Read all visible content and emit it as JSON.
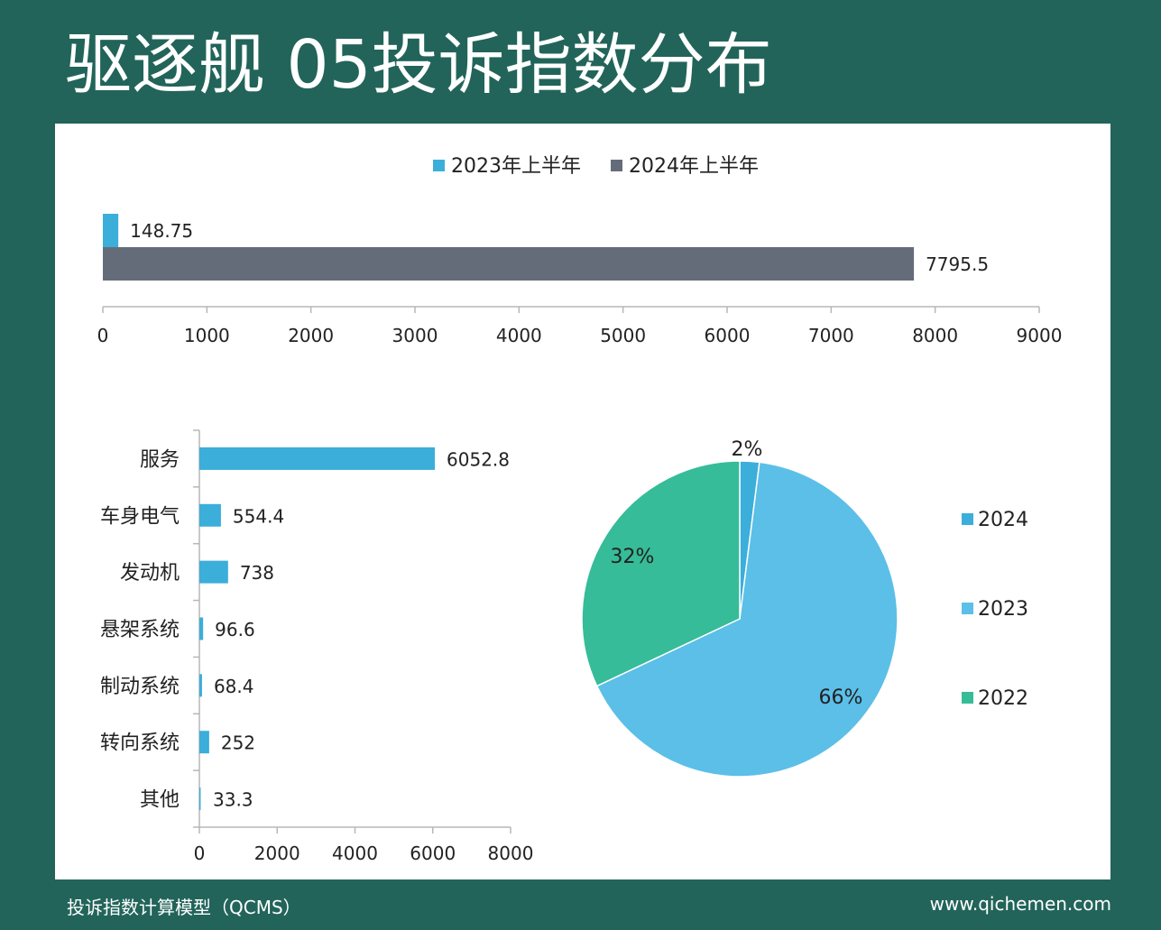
{
  "title": "驱逐舰 05投诉指数分布",
  "footer": {
    "left": "投诉指数计算模型（QCMS）",
    "right": "www.qichemen.com"
  },
  "chart_data": [
    {
      "type": "bar",
      "orientation": "horizontal",
      "series": [
        {
          "name": "2023年上半年",
          "values": [
            148.75
          ],
          "color": "#3BAEDA"
        },
        {
          "name": "2024年上半年",
          "values": [
            7795.5
          ],
          "color": "#656C79"
        }
      ],
      "value_labels": [
        "148.75",
        "7795.5"
      ],
      "xlim": [
        0,
        9000
      ],
      "xticks": [
        0,
        1000,
        2000,
        3000,
        4000,
        5000,
        6000,
        7000,
        8000,
        9000
      ],
      "legend": "top"
    },
    {
      "type": "bar",
      "orientation": "horizontal",
      "categories": [
        "服务",
        "车身电气",
        "发动机",
        "悬架系统",
        "制动系统",
        "转向系统",
        "其他"
      ],
      "values": [
        6052.8,
        554.4,
        738,
        96.6,
        68.4,
        252,
        33.3
      ],
      "value_labels": [
        "6052.8",
        "554.4",
        "738",
        "96.6",
        "68.4",
        "252",
        "33.3"
      ],
      "color": "#3BAEDA",
      "xlim": [
        0,
        8000
      ],
      "xticks": [
        0,
        2000,
        4000,
        6000,
        8000
      ]
    },
    {
      "type": "pie",
      "slices": [
        {
          "label": "2024",
          "value": 2,
          "display": "2%",
          "color": "#3BAEDA"
        },
        {
          "label": "2023",
          "value": 66,
          "display": "66%",
          "color": "#5BBFE8"
        },
        {
          "label": "2022",
          "value": 32,
          "display": "32%",
          "color": "#36BC98"
        }
      ],
      "legend": "right"
    }
  ]
}
